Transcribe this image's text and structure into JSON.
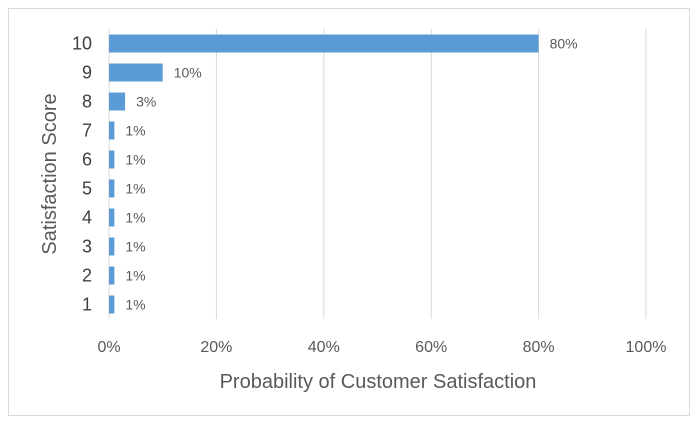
{
  "chart_data": {
    "type": "bar",
    "orientation": "horizontal",
    "title": "",
    "xlabel": "Probability of Customer Satisfaction",
    "ylabel": "Satisfaction Score",
    "categories": [
      "1",
      "2",
      "3",
      "4",
      "5",
      "6",
      "7",
      "8",
      "9",
      "10"
    ],
    "values": [
      1,
      1,
      1,
      1,
      1,
      1,
      1,
      3,
      10,
      80
    ],
    "data_labels": [
      "1%",
      "1%",
      "1%",
      "1%",
      "1%",
      "1%",
      "1%",
      "3%",
      "10%",
      "80%"
    ],
    "xlim": [
      0,
      100
    ],
    "x_ticks": [
      "0%",
      "20%",
      "40%",
      "60%",
      "80%",
      "100%"
    ],
    "x_tick_values": [
      0,
      20,
      40,
      60,
      80,
      100
    ],
    "grid": "vertical",
    "legend": "none",
    "bar_color": "#5b9bd5",
    "grid_color": "#d9d9d9"
  }
}
